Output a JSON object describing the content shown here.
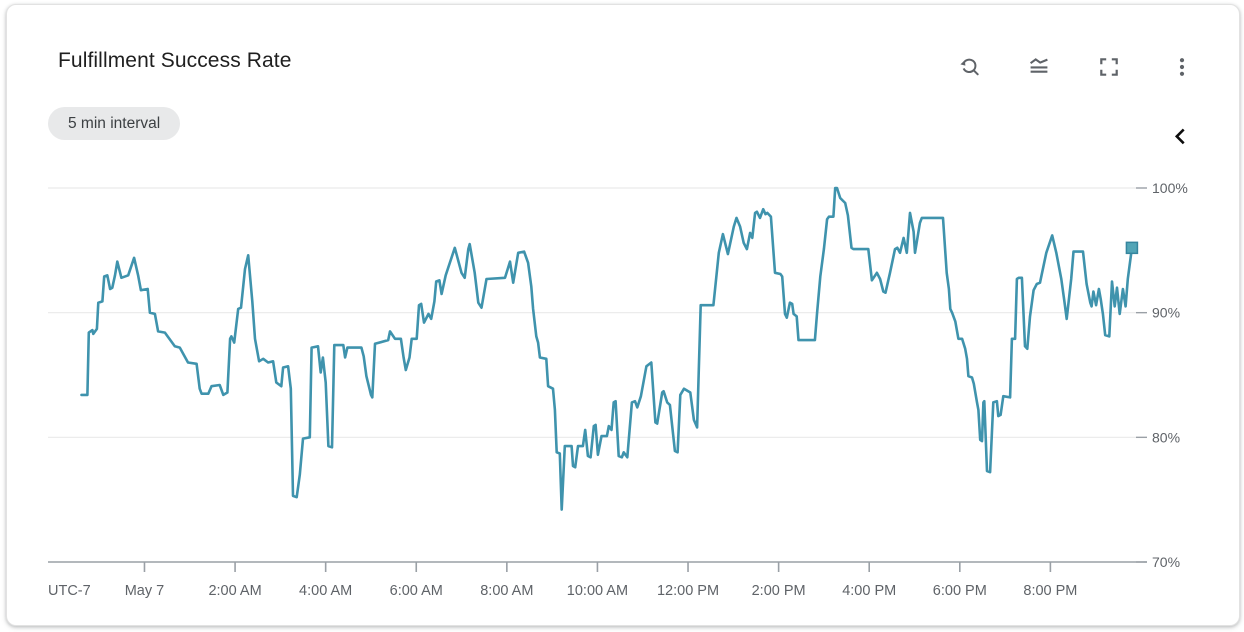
{
  "card": {
    "title": "Fulfillment Success Rate",
    "badge": "5 min interval"
  },
  "toolbar": {
    "icons": [
      "zoom-reset",
      "chart-options",
      "fullscreen",
      "more-options"
    ]
  },
  "side_panel": {
    "collapse_icon": "chevron-left"
  },
  "colors": {
    "title": "#1f1f1f",
    "icon": "#5f6368",
    "chevron": "#0d0d0d",
    "badge_bg": "#e8e9ea",
    "badge_text": "#3c4043",
    "grid": "#e9e9e9",
    "axis": "#9aa0a6",
    "tick_label": "#5f6368",
    "line": "#3f93ad",
    "marker_fill": "#52a5b7",
    "marker_stroke": "#35859e"
  },
  "chart_data": {
    "type": "line",
    "title": "Fulfillment Success Rate",
    "interval_label": "5 min interval",
    "timezone_label": "UTC-7",
    "y_unit": "%",
    "ylim": [
      70,
      100
    ],
    "grid": "horizontal",
    "legend": "none",
    "y_ticks": [
      {
        "value": 100,
        "label": "100%"
      },
      {
        "value": 90,
        "label": "90%"
      },
      {
        "value": 80,
        "label": "80%"
      },
      {
        "value": 70,
        "label": "70%"
      }
    ],
    "x_hours_range": [
      -2.13,
      21.89
    ],
    "x_ticks": [
      {
        "hours": 0,
        "label": "May 7"
      },
      {
        "hours": 2,
        "label": "2:00 AM"
      },
      {
        "hours": 4,
        "label": "4:00 AM"
      },
      {
        "hours": 6,
        "label": "6:00 AM"
      },
      {
        "hours": 8,
        "label": "8:00 AM"
      },
      {
        "hours": 10,
        "label": "10:00 AM"
      },
      {
        "hours": 12,
        "label": "12:00 PM"
      },
      {
        "hours": 14,
        "label": "2:00 PM"
      },
      {
        "hours": 16,
        "label": "4:00 PM"
      },
      {
        "hours": 18,
        "label": "6:00 PM"
      },
      {
        "hours": 20,
        "label": "8:00 PM"
      }
    ],
    "series": [
      {
        "name": "Fulfillment Success Rate",
        "color": "#3f93ad",
        "end_marker": "square",
        "points": [
          [
            -1.39,
            83.4
          ],
          [
            -1.26,
            83.4
          ],
          [
            -1.23,
            88.4
          ],
          [
            -1.15,
            88.6
          ],
          [
            -1.13,
            88.3
          ],
          [
            -1.05,
            88.7
          ],
          [
            -1.02,
            90.8
          ],
          [
            -0.93,
            90.9
          ],
          [
            -0.89,
            92.9
          ],
          [
            -0.82,
            93.0
          ],
          [
            -0.76,
            91.9
          ],
          [
            -0.71,
            92.0
          ],
          [
            -0.65,
            93.0
          ],
          [
            -0.6,
            94.1
          ],
          [
            -0.51,
            92.8
          ],
          [
            -0.36,
            93.0
          ],
          [
            -0.23,
            94.4
          ],
          [
            -0.14,
            93.0
          ],
          [
            -0.08,
            91.8
          ],
          [
            0.07,
            91.9
          ],
          [
            0.12,
            90.0
          ],
          [
            0.23,
            89.9
          ],
          [
            0.3,
            88.5
          ],
          [
            0.45,
            88.4
          ],
          [
            0.67,
            87.3
          ],
          [
            0.78,
            87.2
          ],
          [
            0.96,
            86.0
          ],
          [
            1.15,
            85.9
          ],
          [
            1.22,
            83.9
          ],
          [
            1.26,
            83.5
          ],
          [
            1.41,
            83.5
          ],
          [
            1.48,
            84.1
          ],
          [
            1.66,
            84.2
          ],
          [
            1.74,
            83.4
          ],
          [
            1.83,
            83.6
          ],
          [
            1.89,
            87.9
          ],
          [
            1.92,
            88.1
          ],
          [
            1.98,
            87.6
          ],
          [
            2.07,
            90.3
          ],
          [
            2.13,
            90.4
          ],
          [
            2.22,
            93.5
          ],
          [
            2.29,
            94.6
          ],
          [
            2.38,
            90.9
          ],
          [
            2.44,
            87.9
          ],
          [
            2.53,
            86.1
          ],
          [
            2.62,
            86.3
          ],
          [
            2.73,
            86.0
          ],
          [
            2.84,
            86.1
          ],
          [
            2.91,
            84.4
          ],
          [
            3.02,
            84.1
          ],
          [
            3.06,
            85.6
          ],
          [
            3.17,
            85.7
          ],
          [
            3.23,
            83.9
          ],
          [
            3.28,
            75.3
          ],
          [
            3.36,
            75.2
          ],
          [
            3.43,
            77.0
          ],
          [
            3.5,
            79.9
          ],
          [
            3.65,
            80.0
          ],
          [
            3.69,
            87.2
          ],
          [
            3.83,
            87.3
          ],
          [
            3.89,
            85.2
          ],
          [
            3.94,
            86.4
          ],
          [
            4.0,
            84.4
          ],
          [
            4.06,
            79.3
          ],
          [
            4.14,
            79.2
          ],
          [
            4.19,
            87.4
          ],
          [
            4.39,
            87.4
          ],
          [
            4.43,
            86.4
          ],
          [
            4.48,
            87.2
          ],
          [
            4.79,
            87.2
          ],
          [
            4.84,
            86.5
          ],
          [
            4.9,
            84.9
          ],
          [
            5.0,
            83.4
          ],
          [
            5.03,
            83.2
          ],
          [
            5.09,
            87.5
          ],
          [
            5.38,
            87.8
          ],
          [
            5.42,
            88.5
          ],
          [
            5.53,
            87.9
          ],
          [
            5.66,
            87.9
          ],
          [
            5.72,
            86.4
          ],
          [
            5.77,
            85.4
          ],
          [
            5.85,
            86.4
          ],
          [
            5.9,
            87.9
          ],
          [
            6.01,
            87.9
          ],
          [
            6.06,
            90.6
          ],
          [
            6.11,
            90.7
          ],
          [
            6.17,
            89.2
          ],
          [
            6.27,
            89.9
          ],
          [
            6.33,
            89.5
          ],
          [
            6.4,
            90.9
          ],
          [
            6.44,
            92.5
          ],
          [
            6.51,
            92.6
          ],
          [
            6.56,
            91.5
          ],
          [
            6.65,
            93.0
          ],
          [
            6.85,
            95.2
          ],
          [
            7.0,
            93.2
          ],
          [
            7.07,
            92.8
          ],
          [
            7.15,
            95.1
          ],
          [
            7.18,
            95.5
          ],
          [
            7.29,
            93.2
          ],
          [
            7.37,
            90.8
          ],
          [
            7.44,
            90.4
          ],
          [
            7.55,
            92.7
          ],
          [
            7.96,
            92.8
          ],
          [
            8.07,
            94.1
          ],
          [
            8.14,
            92.4
          ],
          [
            8.25,
            94.8
          ],
          [
            8.38,
            94.9
          ],
          [
            8.47,
            94.0
          ],
          [
            8.54,
            92.1
          ],
          [
            8.58,
            90.3
          ],
          [
            8.65,
            88.1
          ],
          [
            8.69,
            87.6
          ],
          [
            8.73,
            86.4
          ],
          [
            8.87,
            86.3
          ],
          [
            8.91,
            84.1
          ],
          [
            9.02,
            83.9
          ],
          [
            9.06,
            82.2
          ],
          [
            9.1,
            78.8
          ],
          [
            9.17,
            78.7
          ],
          [
            9.21,
            74.2
          ],
          [
            9.28,
            79.3
          ],
          [
            9.43,
            79.3
          ],
          [
            9.46,
            77.7
          ],
          [
            9.51,
            77.6
          ],
          [
            9.57,
            79.3
          ],
          [
            9.68,
            79.3
          ],
          [
            9.73,
            80.6
          ],
          [
            9.79,
            78.5
          ],
          [
            9.85,
            78.4
          ],
          [
            9.92,
            80.9
          ],
          [
            9.96,
            81.0
          ],
          [
            10.01,
            78.6
          ],
          [
            10.09,
            80.1
          ],
          [
            10.21,
            80.1
          ],
          [
            10.25,
            80.9
          ],
          [
            10.31,
            80.6
          ],
          [
            10.36,
            82.8
          ],
          [
            10.4,
            82.9
          ],
          [
            10.47,
            78.5
          ],
          [
            10.54,
            78.4
          ],
          [
            10.58,
            78.8
          ],
          [
            10.66,
            78.4
          ],
          [
            10.76,
            82.8
          ],
          [
            10.83,
            82.9
          ],
          [
            10.88,
            82.4
          ],
          [
            10.96,
            83.3
          ],
          [
            11.08,
            85.7
          ],
          [
            11.19,
            86.0
          ],
          [
            11.28,
            81.2
          ],
          [
            11.32,
            81.1
          ],
          [
            11.43,
            83.6
          ],
          [
            11.46,
            83.7
          ],
          [
            11.54,
            82.8
          ],
          [
            11.6,
            82.6
          ],
          [
            11.71,
            78.9
          ],
          [
            11.77,
            78.8
          ],
          [
            11.83,
            83.4
          ],
          [
            11.91,
            83.9
          ],
          [
            12.05,
            83.6
          ],
          [
            12.13,
            81.4
          ],
          [
            12.2,
            80.8
          ],
          [
            12.28,
            90.6
          ],
          [
            12.56,
            90.6
          ],
          [
            12.68,
            94.8
          ],
          [
            12.77,
            96.3
          ],
          [
            12.88,
            94.7
          ],
          [
            13.01,
            96.9
          ],
          [
            13.07,
            97.6
          ],
          [
            13.15,
            96.9
          ],
          [
            13.23,
            95.6
          ],
          [
            13.3,
            95.1
          ],
          [
            13.37,
            96.4
          ],
          [
            13.42,
            96.0
          ],
          [
            13.48,
            98.0
          ],
          [
            13.52,
            98.1
          ],
          [
            13.59,
            97.6
          ],
          [
            13.66,
            98.3
          ],
          [
            13.71,
            97.9
          ],
          [
            13.75,
            98.0
          ],
          [
            13.83,
            97.7
          ],
          [
            13.92,
            93.2
          ],
          [
            14.04,
            93.1
          ],
          [
            14.08,
            92.9
          ],
          [
            14.14,
            89.9
          ],
          [
            14.18,
            89.6
          ],
          [
            14.25,
            90.8
          ],
          [
            14.3,
            90.7
          ],
          [
            14.33,
            89.9
          ],
          [
            14.4,
            89.7
          ],
          [
            14.44,
            87.8
          ],
          [
            14.8,
            87.8
          ],
          [
            14.85,
            90.0
          ],
          [
            14.92,
            92.9
          ],
          [
            15.0,
            95.1
          ],
          [
            15.07,
            97.5
          ],
          [
            15.11,
            97.7
          ],
          [
            15.21,
            97.7
          ],
          [
            15.25,
            100.0
          ],
          [
            15.29,
            100.0
          ],
          [
            15.36,
            99.2
          ],
          [
            15.47,
            98.8
          ],
          [
            15.53,
            97.8
          ],
          [
            15.61,
            95.2
          ],
          [
            15.65,
            95.1
          ],
          [
            15.98,
            95.1
          ],
          [
            16.06,
            92.6
          ],
          [
            16.17,
            93.2
          ],
          [
            16.24,
            92.7
          ],
          [
            16.31,
            91.7
          ],
          [
            16.36,
            91.6
          ],
          [
            16.46,
            93.2
          ],
          [
            16.57,
            95.1
          ],
          [
            16.62,
            95.2
          ],
          [
            16.68,
            94.8
          ],
          [
            16.76,
            96.0
          ],
          [
            16.83,
            94.8
          ],
          [
            16.9,
            98.0
          ],
          [
            16.98,
            96.5
          ],
          [
            17.01,
            94.8
          ],
          [
            17.12,
            97.2
          ],
          [
            17.16,
            97.6
          ],
          [
            17.63,
            97.6
          ],
          [
            17.71,
            93.2
          ],
          [
            17.76,
            91.9
          ],
          [
            17.79,
            90.3
          ],
          [
            17.83,
            90.0
          ],
          [
            17.9,
            89.3
          ],
          [
            17.97,
            87.9
          ],
          [
            18.05,
            87.9
          ],
          [
            18.12,
            87.1
          ],
          [
            18.16,
            86.3
          ],
          [
            18.19,
            84.9
          ],
          [
            18.27,
            84.8
          ],
          [
            18.31,
            84.3
          ],
          [
            18.38,
            82.8
          ],
          [
            18.41,
            82.2
          ],
          [
            18.45,
            79.8
          ],
          [
            18.49,
            79.7
          ],
          [
            18.52,
            82.8
          ],
          [
            18.54,
            82.9
          ],
          [
            18.6,
            77.3
          ],
          [
            18.67,
            77.2
          ],
          [
            18.74,
            82.8
          ],
          [
            18.82,
            82.9
          ],
          [
            18.85,
            81.7
          ],
          [
            18.9,
            81.8
          ],
          [
            18.96,
            83.3
          ],
          [
            19.11,
            83.2
          ],
          [
            19.15,
            87.9
          ],
          [
            19.22,
            87.9
          ],
          [
            19.26,
            92.7
          ],
          [
            19.3,
            92.8
          ],
          [
            19.37,
            92.8
          ],
          [
            19.44,
            87.3
          ],
          [
            19.49,
            87.1
          ],
          [
            19.55,
            89.7
          ],
          [
            19.63,
            91.8
          ],
          [
            19.7,
            92.3
          ],
          [
            19.77,
            92.4
          ],
          [
            19.91,
            94.8
          ],
          [
            20.04,
            96.2
          ],
          [
            20.13,
            94.8
          ],
          [
            20.24,
            92.7
          ],
          [
            20.31,
            90.9
          ],
          [
            20.36,
            89.5
          ],
          [
            20.46,
            92.7
          ],
          [
            20.51,
            94.9
          ],
          [
            20.72,
            94.9
          ],
          [
            20.8,
            92.3
          ],
          [
            20.88,
            90.8
          ],
          [
            20.91,
            90.5
          ],
          [
            20.95,
            91.7
          ],
          [
            21.01,
            90.6
          ],
          [
            21.07,
            91.9
          ],
          [
            21.11,
            91.1
          ],
          [
            21.16,
            89.9
          ],
          [
            21.21,
            88.2
          ],
          [
            21.3,
            88.1
          ],
          [
            21.36,
            92.5
          ],
          [
            21.42,
            90.5
          ],
          [
            21.47,
            92.0
          ],
          [
            21.53,
            89.9
          ],
          [
            21.6,
            91.9
          ],
          [
            21.66,
            90.5
          ],
          [
            21.71,
            92.7
          ],
          [
            21.77,
            94.4
          ],
          [
            21.8,
            95.2
          ]
        ]
      }
    ]
  }
}
